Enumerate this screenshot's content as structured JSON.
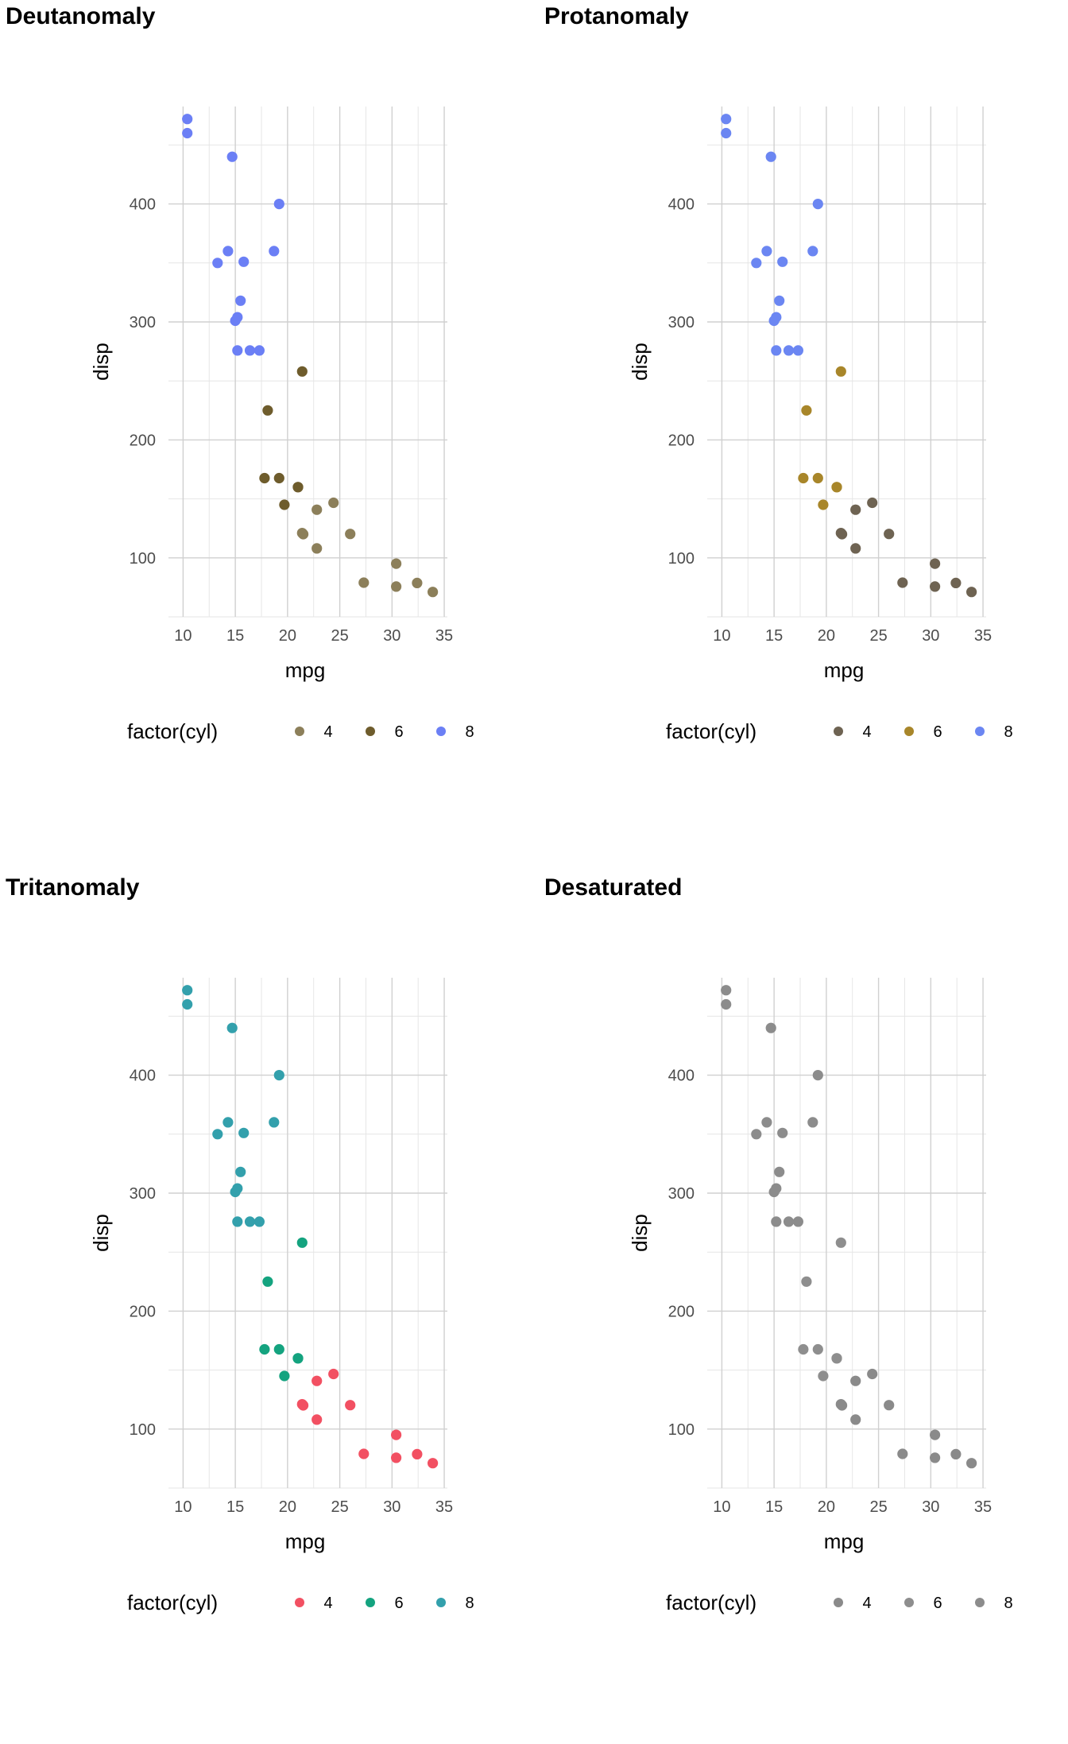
{
  "chart_data": [
    {
      "type": "scatter",
      "title": "Deutanomaly",
      "xlabel": "mpg",
      "ylabel": "disp",
      "xlim": [
        10,
        35
      ],
      "ylim": [
        50,
        480
      ],
      "x_ticks": [
        "10",
        "15",
        "20",
        "25",
        "30",
        "35"
      ],
      "y_ticks": [
        "100",
        "200",
        "300",
        "400"
      ],
      "grid": true,
      "legend_position": "bottom",
      "legend_title": "factor(cyl)",
      "series": [
        {
          "name": "4",
          "color": "#8c7f5a"
        },
        {
          "name": "6",
          "color": "#6e5c2c"
        },
        {
          "name": "8",
          "color": "#6b7ff5"
        }
      ]
    },
    {
      "type": "scatter",
      "title": "Protanomaly",
      "xlabel": "mpg",
      "ylabel": "disp",
      "xlim": [
        10,
        35
      ],
      "ylim": [
        50,
        480
      ],
      "x_ticks": [
        "10",
        "15",
        "20",
        "25",
        "30",
        "35"
      ],
      "y_ticks": [
        "100",
        "200",
        "300",
        "400"
      ],
      "grid": true,
      "legend_position": "bottom",
      "legend_title": "factor(cyl)",
      "series": [
        {
          "name": "4",
          "color": "#6e6352"
        },
        {
          "name": "6",
          "color": "#a8862a"
        },
        {
          "name": "8",
          "color": "#6b86f2"
        }
      ]
    },
    {
      "type": "scatter",
      "title": "Tritanomaly",
      "xlabel": "mpg",
      "ylabel": "disp",
      "xlim": [
        10,
        35
      ],
      "ylim": [
        50,
        480
      ],
      "x_ticks": [
        "10",
        "15",
        "20",
        "25",
        "30",
        "35"
      ],
      "y_ticks": [
        "100",
        "200",
        "300",
        "400"
      ],
      "grid": true,
      "legend_position": "bottom",
      "legend_title": "factor(cyl)",
      "series": [
        {
          "name": "4",
          "color": "#f25062"
        },
        {
          "name": "6",
          "color": "#14a37f"
        },
        {
          "name": "8",
          "color": "#33a0ac"
        }
      ]
    },
    {
      "type": "scatter",
      "title": "Desaturated",
      "xlabel": "mpg",
      "ylabel": "disp",
      "xlim": [
        10,
        35
      ],
      "ylim": [
        50,
        480
      ],
      "x_ticks": [
        "10",
        "15",
        "20",
        "25",
        "30",
        "35"
      ],
      "y_ticks": [
        "100",
        "200",
        "300",
        "400"
      ],
      "grid": true,
      "legend_position": "bottom",
      "legend_title": "factor(cyl)",
      "series": [
        {
          "name": "4",
          "color": "#8a8a8a"
        },
        {
          "name": "6",
          "color": "#8e8e8e"
        },
        {
          "name": "8",
          "color": "#8c8c8c"
        }
      ]
    }
  ],
  "points": [
    [
      21.0,
      160,
      "6"
    ],
    [
      21.0,
      160,
      "6"
    ],
    [
      22.8,
      108,
      "4"
    ],
    [
      21.4,
      258,
      "6"
    ],
    [
      18.7,
      360,
      "8"
    ],
    [
      18.1,
      225,
      "6"
    ],
    [
      14.3,
      360,
      "8"
    ],
    [
      24.4,
      146.7,
      "4"
    ],
    [
      22.8,
      140.8,
      "4"
    ],
    [
      19.2,
      167.6,
      "6"
    ],
    [
      17.8,
      167.6,
      "6"
    ],
    [
      16.4,
      275.8,
      "8"
    ],
    [
      17.3,
      275.8,
      "8"
    ],
    [
      15.2,
      275.8,
      "8"
    ],
    [
      10.4,
      472,
      "8"
    ],
    [
      10.4,
      460,
      "8"
    ],
    [
      14.7,
      440,
      "8"
    ],
    [
      32.4,
      78.7,
      "4"
    ],
    [
      30.4,
      75.7,
      "4"
    ],
    [
      33.9,
      71.1,
      "4"
    ],
    [
      21.5,
      120.1,
      "4"
    ],
    [
      15.5,
      318,
      "8"
    ],
    [
      15.2,
      304,
      "8"
    ],
    [
      13.3,
      350,
      "8"
    ],
    [
      19.2,
      400,
      "8"
    ],
    [
      27.3,
      79,
      "4"
    ],
    [
      26.0,
      120.3,
      "4"
    ],
    [
      30.4,
      95.1,
      "4"
    ],
    [
      15.8,
      351,
      "8"
    ],
    [
      19.7,
      145,
      "6"
    ],
    [
      15.0,
      301,
      "8"
    ],
    [
      21.4,
      121,
      "4"
    ]
  ]
}
